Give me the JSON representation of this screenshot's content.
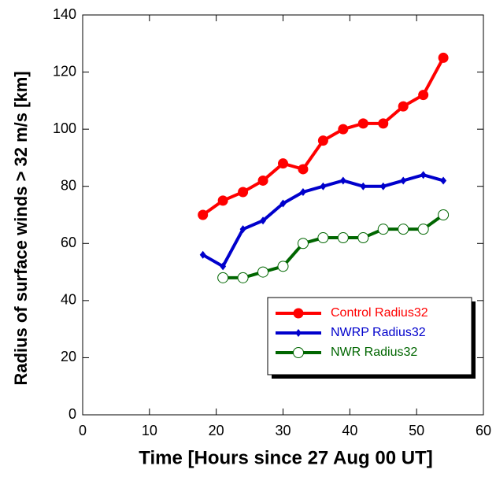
{
  "chart_data": {
    "type": "line",
    "xlabel": "Time [Hours since 27 Aug 00 UT]",
    "ylabel": "Radius of surface winds > 32 m/s [km]",
    "xlim": [
      0,
      60
    ],
    "xticks": [
      0,
      10,
      20,
      30,
      40,
      50,
      60
    ],
    "ylim": [
      0,
      140
    ],
    "yticks": [
      0,
      20,
      40,
      60,
      80,
      100,
      120,
      140
    ],
    "legend": "lower right",
    "series": [
      {
        "name": "Control Radius32",
        "color": "#ff0000",
        "marker": "circle",
        "x": [
          18,
          21,
          24,
          27,
          30,
          33,
          36,
          39,
          42,
          45,
          48,
          51,
          54
        ],
        "values": [
          70,
          75,
          78,
          82,
          88,
          86,
          96,
          100,
          102,
          102,
          108,
          112,
          125
        ]
      },
      {
        "name": "NWRP Radius32",
        "color": "#0000cc",
        "marker": "diamond",
        "x": [
          18,
          21,
          24,
          27,
          30,
          33,
          36,
          39,
          42,
          45,
          48,
          51,
          54
        ],
        "values": [
          56,
          52,
          65,
          68,
          74,
          78,
          80,
          82,
          80,
          80,
          82,
          84,
          82
        ]
      },
      {
        "name": "NWR Radius32",
        "color": "#006600",
        "marker": "open-circle",
        "x": [
          21,
          24,
          27,
          30,
          33,
          36,
          39,
          42,
          45,
          48,
          51,
          54
        ],
        "values": [
          48,
          48,
          50,
          52,
          60,
          62,
          62,
          62,
          65,
          65,
          65,
          70
        ]
      }
    ]
  }
}
